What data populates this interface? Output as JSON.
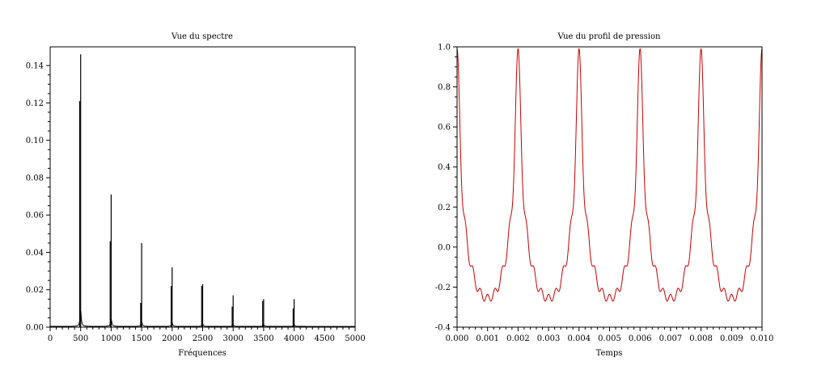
{
  "chart_data": [
    {
      "type": "line",
      "title": "Vue du spectre",
      "xlabel": "Fréquences",
      "ylabel": "",
      "xlim": [
        0,
        5000
      ],
      "ylim": [
        0,
        0.15
      ],
      "x_ticks": [
        0,
        500,
        1000,
        1500,
        2000,
        2500,
        3000,
        3500,
        4000,
        4500,
        5000
      ],
      "x_tick_labels": [
        "0",
        "500",
        "1000",
        "1500",
        "2000",
        "2500",
        "3000",
        "3500",
        "4000",
        "4500",
        "5000"
      ],
      "y_ticks": [
        0,
        0.02,
        0.04,
        0.06,
        0.08,
        0.1,
        0.12,
        0.14
      ],
      "y_tick_labels": [
        "0.00",
        "0.02",
        "0.04",
        "0.06",
        "0.08",
        "0.10",
        "0.12",
        "0.14"
      ],
      "grid": false,
      "line_color": "#000000",
      "peak_secondary_ratio": 0.32,
      "series": [
        {
          "peaks": [
            {
              "x": 500,
              "y": 0.146,
              "y_secondary": 0.121
            },
            {
              "x": 1000,
              "y": 0.071,
              "y_secondary": 0.046
            },
            {
              "x": 1500,
              "y": 0.045,
              "y_secondary": 0.013
            },
            {
              "x": 2000,
              "y": 0.032,
              "y_secondary": 0.022
            },
            {
              "x": 2500,
              "y": 0.023,
              "y_secondary": 0.022
            },
            {
              "x": 3000,
              "y": 0.017,
              "y_secondary": 0.011
            },
            {
              "x": 3500,
              "y": 0.015,
              "y_secondary": 0.014
            },
            {
              "x": 4000,
              "y": 0.015,
              "y_secondary": 0.01
            }
          ]
        }
      ]
    },
    {
      "type": "line",
      "title": "Vue du profil de pression",
      "xlabel": "Temps",
      "ylabel": "",
      "xlim": [
        0,
        0.01
      ],
      "ylim": [
        -0.4,
        1.0
      ],
      "x_ticks": [
        0,
        0.001,
        0.002,
        0.003,
        0.004,
        0.005,
        0.006,
        0.007,
        0.008,
        0.009,
        0.01
      ],
      "x_tick_labels": [
        "0.000",
        "0.001",
        "0.002",
        "0.003",
        "0.004",
        "0.005",
        "0.006",
        "0.007",
        "0.008",
        "0.009",
        "0.010"
      ],
      "y_ticks": [
        -0.4,
        -0.2,
        0.0,
        0.2,
        0.4,
        0.6,
        0.8,
        1.0
      ],
      "y_tick_labels": [
        "-0.4",
        "-0.2",
        "0.0",
        "0.2",
        "0.4",
        "0.6",
        "0.8",
        "1.0"
      ],
      "grid": false,
      "line_color": "#cc0000",
      "period": 0.002,
      "harmonic_amplitudes": [
        0.146,
        0.071,
        0.045,
        0.032,
        0.023,
        0.017,
        0.015,
        0.015
      ],
      "peak_value": 0.99,
      "trough_value": -0.27
    }
  ]
}
